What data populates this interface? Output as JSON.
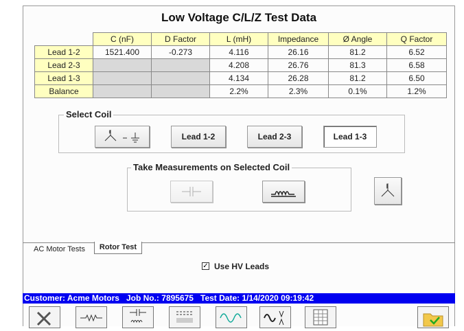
{
  "title": "Low Voltage C/L/Z Test Data",
  "table": {
    "headers": [
      "C (nF)",
      "D Factor",
      "L (mH)",
      "Impedance",
      "Ø Angle",
      "Q Factor"
    ],
    "rows": [
      [
        "Lead 1-2",
        "1521.400",
        "-0.273",
        "4.116",
        "26.16",
        "81.2",
        "6.52"
      ],
      [
        "Lead 2-3",
        null,
        null,
        "4.208",
        "26.76",
        "81.3",
        "6.58"
      ],
      [
        "Lead 1-3",
        null,
        null,
        "4.134",
        "26.28",
        "81.2",
        "6.50"
      ],
      [
        "Balance",
        null,
        null,
        "2.2%",
        "2.3%",
        "0.1%",
        "1.2%"
      ]
    ]
  },
  "select_coil": {
    "label": "Select Coil",
    "buttons": [
      "Lead 1-2",
      "Lead 2-3",
      "Lead 1-3"
    ]
  },
  "measurements": {
    "label": "Take Measurements on Selected Coil"
  },
  "tabs": [
    "AC Motor Tests",
    "Rotor Test"
  ],
  "checkbox": {
    "label": "Use HV Leads",
    "checked": true
  },
  "status": {
    "customer": "Customer: Acme Motors",
    "job": "Job No.: 7895675",
    "date": "Test Date: 1/14/2020 09:19:42"
  }
}
